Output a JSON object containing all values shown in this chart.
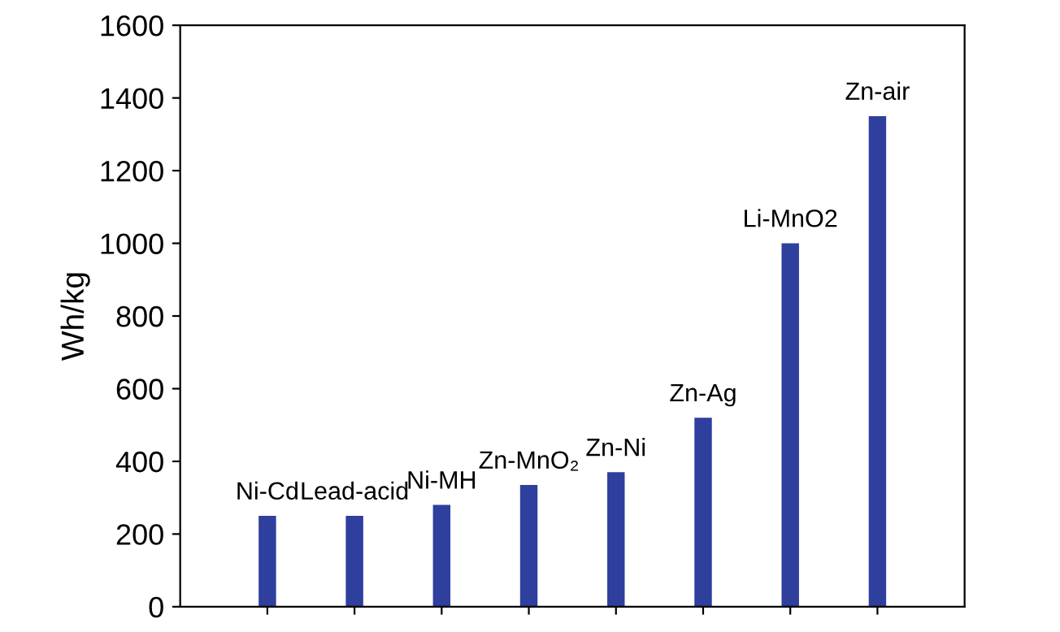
{
  "chart_data": {
    "type": "bar",
    "ylabel": "Wh/kg",
    "categories": [
      null,
      null,
      null,
      null,
      null,
      null,
      null,
      null
    ],
    "series": [
      {
        "name": "Ni-Cd",
        "color": "#2e3f9e",
        "values": [
          250,
          null,
          null,
          null,
          null,
          null,
          null,
          null
        ]
      },
      {
        "name": "Lead-acid",
        "color": "#2e3f9e",
        "values": [
          null,
          250,
          null,
          null,
          null,
          null,
          null,
          null
        ]
      },
      {
        "name": "Ni-MH",
        "color": "#2e3f9e",
        "values": [
          null,
          null,
          280,
          null,
          null,
          null,
          null,
          null
        ]
      },
      {
        "name": "Zn-MnO₂",
        "color": "#2e3f9e",
        "values": [
          null,
          null,
          null,
          335,
          null,
          null,
          null,
          null
        ]
      },
      {
        "name": "Zn-Ni",
        "color": "#2e3f9e",
        "values": [
          null,
          null,
          null,
          null,
          370,
          null,
          null,
          null
        ]
      },
      {
        "name": "Zn-Ag",
        "color": "#2e3f9e",
        "values": [
          null,
          null,
          null,
          null,
          null,
          520,
          null,
          null
        ]
      },
      {
        "name": "Li-MnO2",
        "color": "#2e3f9e",
        "values": [
          null,
          null,
          null,
          null,
          null,
          null,
          1000,
          null
        ]
      },
      {
        "name": "Zn-air",
        "color": "#2e3f9e",
        "values": [
          null,
          null,
          null,
          null,
          null,
          null,
          null,
          1350
        ]
      }
    ],
    "ylim": [
      0,
      1600
    ],
    "yticks": [
      0,
      200,
      400,
      600,
      800,
      1000,
      1200,
      1400,
      1600
    ],
    "grid": false,
    "tick_labels": "y"
  }
}
